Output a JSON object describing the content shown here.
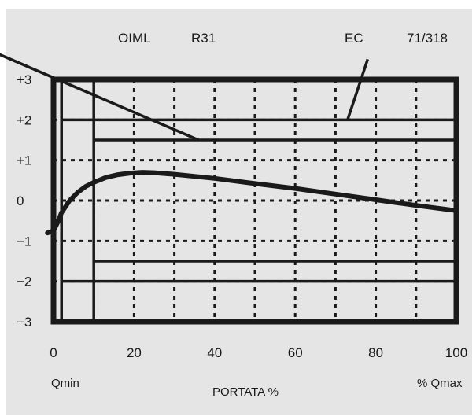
{
  "header_labels": {
    "oiml": "OIML",
    "r31": "R31",
    "ec": "EC",
    "ec_ref": "71/318"
  },
  "colors": {
    "background": "#e5e5e5",
    "ink": "#1a1a1a"
  },
  "chart_data": {
    "type": "line",
    "title": "",
    "xlabel": "PORTATA %",
    "ylabel": "",
    "xlim": [
      0,
      100
    ],
    "ylim": [
      -3,
      3
    ],
    "x_ticks": [
      0,
      20,
      40,
      60,
      80,
      100
    ],
    "x_tick_labels": [
      "0",
      "20",
      "40",
      "60",
      "80",
      "100"
    ],
    "y_ticks": [
      3,
      2,
      1,
      0,
      -1,
      -2,
      -3
    ],
    "y_tick_labels": [
      "+3",
      "+2",
      "+1",
      "0",
      "−1",
      "−2",
      "−3"
    ],
    "x_min_label": "Qmin",
    "x_max_label": "% Qmax",
    "grid": true,
    "grid_x": [
      0,
      10,
      20,
      30,
      40,
      50,
      60,
      70,
      80,
      90,
      100
    ],
    "grid_y": [
      -2,
      -1,
      0,
      1,
      2
    ],
    "error_curve": {
      "x": [
        -1.5,
        0,
        1,
        2,
        4,
        6,
        8,
        10,
        13,
        16,
        19,
        22,
        25,
        30,
        35,
        40,
        50,
        60,
        70,
        80,
        90,
        100
      ],
      "y": [
        -0.8,
        -0.75,
        -0.55,
        -0.3,
        0.0,
        0.2,
        0.35,
        0.45,
        0.57,
        0.64,
        0.68,
        0.7,
        0.69,
        0.65,
        0.6,
        0.55,
        0.42,
        0.3,
        0.16,
        0.02,
        -0.12,
        -0.25
      ]
    },
    "limit_bands": [
      {
        "group": "OIML R31",
        "x_from": 2,
        "upper": 2,
        "lower": -2
      },
      {
        "group": "EC 71/318",
        "x_from": 10,
        "upper": 1.5,
        "lower": -1.5
      }
    ],
    "reference_verticals": [
      2,
      10
    ],
    "leaders": [
      {
        "group": "OIML R31",
        "from": [
          -20,
          3.9
        ],
        "to": [
          36,
          1.5
        ]
      },
      {
        "group": "EC 71/318",
        "from": [
          78,
          3.5
        ],
        "to": [
          73,
          2
        ]
      }
    ]
  }
}
